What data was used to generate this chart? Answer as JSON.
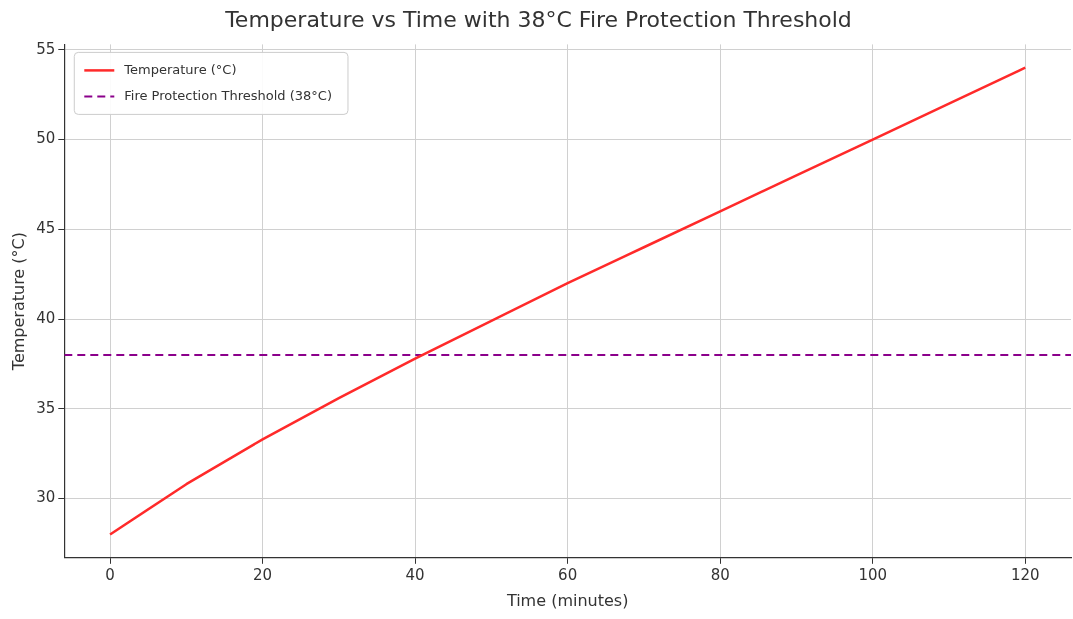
{
  "chart_data": {
    "type": "line",
    "title": "Temperature vs Time with 38°C Fire Protection Threshold",
    "xlabel": "Time (minutes)",
    "ylabel": "Temperature (°C)",
    "x": [
      0,
      10,
      20,
      30,
      40,
      50,
      60,
      70,
      80,
      90,
      100,
      110,
      120
    ],
    "series": [
      {
        "name": "Temperature (°C)",
        "color": "#ff2a2a",
        "values": [
          28,
          30.8,
          33.3,
          35.6,
          37.8,
          39.9,
          42,
          44,
          46,
          48,
          50,
          52,
          54
        ]
      }
    ],
    "ref_lines": [
      {
        "axis": "y",
        "value": 38,
        "label": "Fire Protection Threshold (38°C)",
        "color": "#8b008b",
        "line_style": "dashed"
      }
    ],
    "xlim": [
      -6,
      126
    ],
    "ylim": [
      26.7,
      55.3
    ],
    "xticks": [
      0,
      20,
      40,
      60,
      80,
      100,
      120
    ],
    "yticks": [
      30,
      35,
      40,
      45,
      50,
      55
    ],
    "grid": true,
    "legend": "top left",
    "marker": "none",
    "line_style": "solid"
  }
}
